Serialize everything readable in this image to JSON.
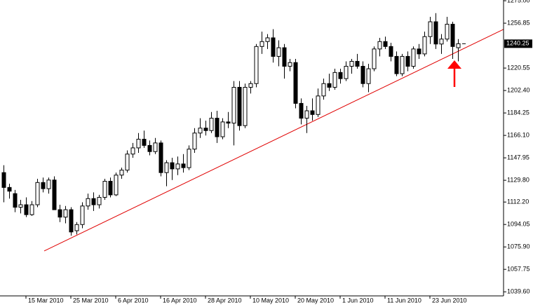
{
  "chart_data": {
    "type": "candlestick",
    "categories": [
      null,
      null,
      null,
      null,
      "15 Mar 2010",
      null,
      null,
      null,
      null,
      null,
      null,
      null,
      "25 Mar 2010",
      null,
      null,
      null,
      null,
      null,
      null,
      null,
      "6 Apr 2010",
      null,
      null,
      null,
      null,
      null,
      null,
      null,
      "16 Apr 2010",
      null,
      null,
      null,
      null,
      null,
      null,
      null,
      "28 Apr 2010",
      null,
      null,
      null,
      null,
      null,
      null,
      null,
      "10 May 2010",
      null,
      null,
      null,
      null,
      null,
      null,
      null,
      "20 May 2010",
      null,
      null,
      null,
      null,
      null,
      null,
      null,
      "1 Jun 2010",
      null,
      null,
      null,
      null,
      null,
      null,
      null,
      "11 Jun 2010",
      null,
      null,
      null,
      null,
      null,
      null,
      null,
      "23 Jun 2010",
      null,
      null,
      null,
      null,
      null
    ],
    "open": [
      1136,
      1124,
      1119,
      1108,
      1110,
      1102,
      1110,
      1128,
      1123,
      1130,
      1106,
      1100,
      1106,
      1089,
      1094,
      1109,
      1115,
      1110,
      1116,
      1129,
      1118,
      1134,
      1138,
      1151,
      1156,
      1163,
      1158,
      1153,
      1160,
      1136,
      1144,
      1139,
      1143,
      1140,
      1155,
      1168,
      1172,
      1170,
      1180,
      1165,
      1177,
      1176,
      1205,
      1174,
      1205,
      1208,
      1238,
      1242,
      1245,
      1230,
      1237,
      1222,
      1225,
      1192,
      1180,
      1186,
      1183,
      1198,
      1208,
      1205,
      1217,
      1212,
      1222,
      1226,
      1222,
      1208,
      1220,
      1236,
      1242,
      1238,
      1230,
      1216,
      1230,
      1222,
      1236,
      1232,
      1246,
      1258,
      1240,
      1244,
      1256,
      1237
    ],
    "high": [
      1142,
      1127,
      1122,
      1114,
      1116,
      1113,
      1131,
      1132,
      1132,
      1133,
      1110,
      1109,
      1108,
      1096,
      1112,
      1119,
      1120,
      1118,
      1131,
      1132,
      1136,
      1140,
      1154,
      1160,
      1168,
      1170,
      1162,
      1164,
      1162,
      1146,
      1148,
      1149,
      1151,
      1158,
      1172,
      1180,
      1178,
      1185,
      1186,
      1180,
      1185,
      1210,
      1210,
      1208,
      1210,
      1240,
      1250,
      1248,
      1252,
      1243,
      1240,
      1228,
      1228,
      1196,
      1190,
      1196,
      1204,
      1212,
      1216,
      1220,
      1220,
      1226,
      1228,
      1232,
      1226,
      1224,
      1238,
      1245,
      1246,
      1241,
      1234,
      1232,
      1234,
      1238,
      1240,
      1250,
      1262,
      1265,
      1248,
      1262,
      1258,
      1244
    ],
    "low": [
      1112,
      1115,
      1104,
      1103,
      1100,
      1101,
      1108,
      1120,
      1119,
      1108,
      1096,
      1095,
      1085,
      1086,
      1091,
      1106,
      1105,
      1107,
      1114,
      1116,
      1117,
      1131,
      1136,
      1148,
      1152,
      1156,
      1150,
      1151,
      1133,
      1125,
      1130,
      1134,
      1136,
      1138,
      1152,
      1164,
      1166,
      1168,
      1160,
      1163,
      1172,
      1158,
      1170,
      1172,
      1200,
      1205,
      1232,
      1236,
      1225,
      1222,
      1212,
      1218,
      1188,
      1175,
      1168,
      1178,
      1181,
      1195,
      1202,
      1203,
      1208,
      1210,
      1216,
      1220,
      1205,
      1201,
      1218,
      1230,
      1236,
      1226,
      1214,
      1214,
      1218,
      1220,
      1228,
      1230,
      1240,
      1236,
      1232,
      1242,
      1228,
      1226
    ],
    "close": [
      1124,
      1121,
      1108,
      1110,
      1102,
      1110,
      1128,
      1123,
      1130,
      1106,
      1100,
      1106,
      1088,
      1094,
      1109,
      1115,
      1110,
      1116,
      1129,
      1118,
      1134,
      1138,
      1151,
      1156,
      1163,
      1158,
      1153,
      1160,
      1136,
      1144,
      1139,
      1143,
      1140,
      1155,
      1168,
      1172,
      1170,
      1180,
      1165,
      1177,
      1176,
      1205,
      1174,
      1205,
      1208,
      1238,
      1242,
      1245,
      1230,
      1237,
      1222,
      1225,
      1192,
      1180,
      1186,
      1183,
      1198,
      1208,
      1205,
      1217,
      1212,
      1222,
      1226,
      1222,
      1208,
      1220,
      1236,
      1242,
      1238,
      1230,
      1216,
      1230,
      1222,
      1236,
      1232,
      1246,
      1258,
      1240,
      1244,
      1256,
      1238,
      1240.25
    ],
    "ylim": [
      1036.3,
      1275.6
    ],
    "yticks": [
      {
        "value": 1039.6,
        "label": "1039.60"
      },
      1057.75,
      {
        "value": 1075.9,
        "label": "1075.90"
      },
      1094.05,
      {
        "value": 1112.2,
        "label": "1112.20"
      },
      {
        "value": 1129.8,
        "label": "1129.80"
      },
      1147.95,
      {
        "value": 1166.1,
        "label": "1166.10"
      },
      1184.25,
      {
        "value": 1202.4,
        "label": "1202.40"
      },
      1220.55,
      1256.85,
      {
        "value": 1275.0,
        "label": "1275.00"
      }
    ],
    "trendline": {
      "x": [
        7.25,
        89.1
      ],
      "y": [
        1072.6,
        1251.8
      ],
      "color": "#e00000"
    },
    "up_color": "#ffffff",
    "down_color": "#000000"
  }
}
